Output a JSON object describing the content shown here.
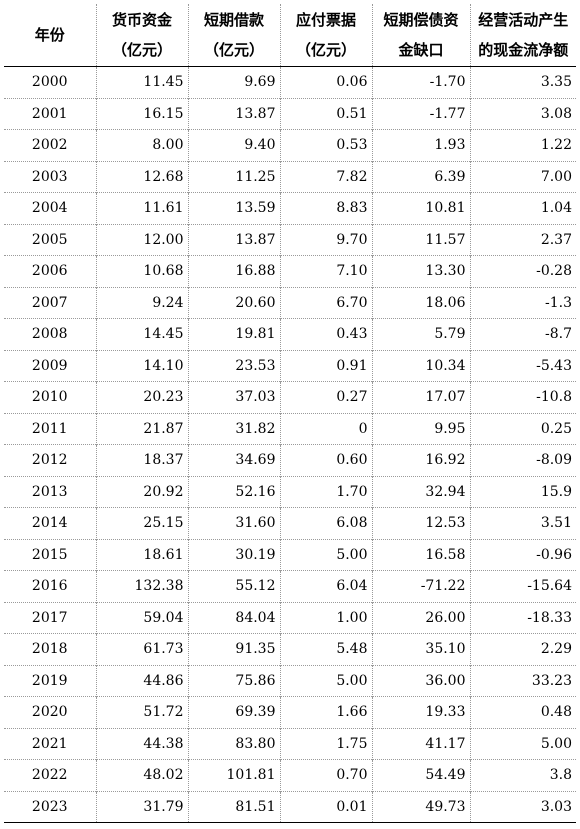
{
  "headers": [
    {
      "line1": "年份",
      "line2": ""
    },
    {
      "line1": "货币资金",
      "line2": "（亿元）"
    },
    {
      "line1": "短期借款",
      "line2": "（亿元）"
    },
    {
      "line1": "应付票据",
      "line2": "（亿元）"
    },
    {
      "line1": "短期偿债资",
      "line2": "金缺口"
    },
    {
      "line1": "经营活动产生",
      "line2": "的现金流净额"
    }
  ],
  "rows": [
    [
      "2000",
      "11.45",
      "9.69",
      "0.06",
      "-1.70",
      "3.35"
    ],
    [
      "2001",
      "16.15",
      "13.87",
      "0.51",
      "-1.77",
      "3.08"
    ],
    [
      "2002",
      "8.00",
      "9.40",
      "0.53",
      "1.93",
      "1.22"
    ],
    [
      "2003",
      "12.68",
      "11.25",
      "7.82",
      "6.39",
      "7.00"
    ],
    [
      "2004",
      "11.61",
      "13.59",
      "8.83",
      "10.81",
      "1.04"
    ],
    [
      "2005",
      "12.00",
      "13.87",
      "9.70",
      "11.57",
      "2.37"
    ],
    [
      "2006",
      "10.68",
      "16.88",
      "7.10",
      "13.30",
      "-0.28"
    ],
    [
      "2007",
      "9.24",
      "20.60",
      "6.70",
      "18.06",
      "-1.3"
    ],
    [
      "2008",
      "14.45",
      "19.81",
      "0.43",
      "5.79",
      "-8.7"
    ],
    [
      "2009",
      "14.10",
      "23.53",
      "0.91",
      "10.34",
      "-5.43"
    ],
    [
      "2010",
      "20.23",
      "37.03",
      "0.27",
      "17.07",
      "-10.8"
    ],
    [
      "2011",
      "21.87",
      "31.82",
      "0",
      "9.95",
      "0.25"
    ],
    [
      "2012",
      "18.37",
      "34.69",
      "0.60",
      "16.92",
      "-8.09"
    ],
    [
      "2013",
      "20.92",
      "52.16",
      "1.70",
      "32.94",
      "15.9"
    ],
    [
      "2014",
      "25.15",
      "31.60",
      "6.08",
      "12.53",
      "3.51"
    ],
    [
      "2015",
      "18.61",
      "30.19",
      "5.00",
      "16.58",
      "-0.96"
    ],
    [
      "2016",
      "132.38",
      "55.12",
      "6.04",
      "-71.22",
      "-15.64"
    ],
    [
      "2017",
      "59.04",
      "84.04",
      "1.00",
      "26.00",
      "-18.33"
    ],
    [
      "2018",
      "61.73",
      "91.35",
      "5.48",
      "35.10",
      "2.29"
    ],
    [
      "2019",
      "44.86",
      "75.86",
      "5.00",
      "36.00",
      "33.23"
    ],
    [
      "2020",
      "51.72",
      "69.39",
      "1.66",
      "19.33",
      "0.48"
    ],
    [
      "2021",
      "44.38",
      "83.80",
      "1.75",
      "41.17",
      "5.00"
    ],
    [
      "2022",
      "48.02",
      "101.81",
      "0.70",
      "54.49",
      "3.8"
    ],
    [
      "2023",
      "31.79",
      "81.51",
      "0.01",
      "49.73",
      "3.03"
    ]
  ]
}
